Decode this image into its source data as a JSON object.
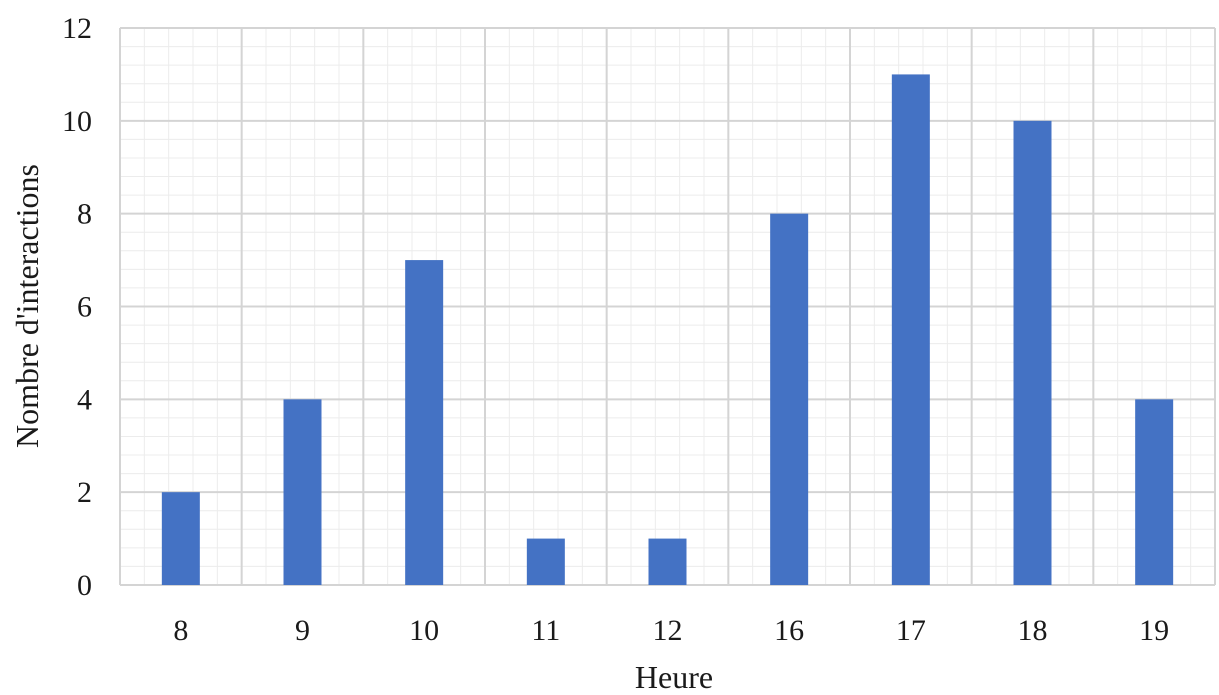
{
  "chart_data": {
    "type": "bar",
    "title": "",
    "xlabel": "Heure",
    "ylabel": "Nombre d'interactions",
    "categories": [
      "8",
      "9",
      "10",
      "11",
      "12",
      "16",
      "17",
      "18",
      "19"
    ],
    "values": [
      2,
      4,
      7,
      1,
      1,
      8,
      11,
      10,
      4
    ],
    "ylim": [
      0,
      12
    ],
    "yticks": [
      "0",
      "2",
      "4",
      "6",
      "8",
      "10",
      "12"
    ],
    "grid": "on",
    "legend": "none",
    "colors": {
      "bar": "#4472C4",
      "major_grid": "#d4d4d4",
      "minor_grid": "#ececec"
    }
  }
}
